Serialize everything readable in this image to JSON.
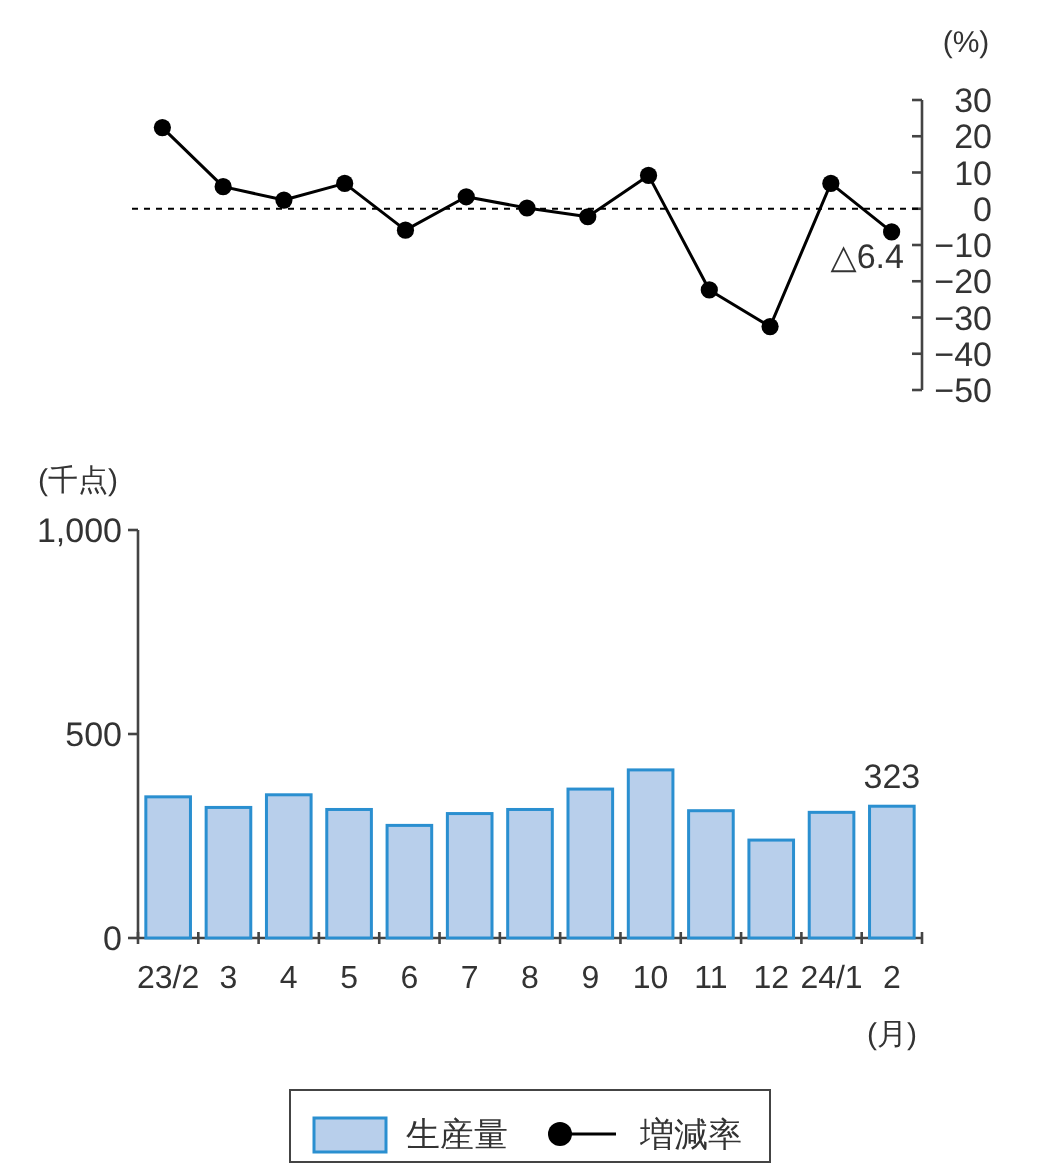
{
  "chart_data": [
    {
      "type": "line",
      "ylabel": "(%)",
      "categories": [
        null,
        null,
        null,
        null,
        null,
        null,
        null,
        null,
        null,
        null,
        null,
        null,
        null
      ],
      "series": [
        {
          "name": "増減率",
          "color": "#000000",
          "values": [
            22.4,
            6.1,
            2.4,
            7.0,
            -5.9,
            3.3,
            0.2,
            -2.2,
            9.2,
            -22.4,
            -32.5,
            7.0,
            -6.4
          ]
        }
      ],
      "annotations": [
        "△6.4"
      ],
      "marker": "circle",
      "line_style": "solid",
      "ylim": [
        -50,
        30
      ],
      "yticks": [
        30,
        20,
        10,
        0,
        {
          "value": -10,
          "label": "−10"
        },
        {
          "value": -20,
          "label": "−20"
        },
        {
          "value": -30,
          "label": "−30"
        },
        {
          "value": -40,
          "label": "−40"
        },
        {
          "value": -50,
          "label": "−50"
        }
      ],
      "ref_lines": [
        {
          "axis": "y",
          "value": 0,
          "color": "#000000",
          "line_style": "dashed"
        }
      ],
      "tick_labels": "y",
      "legend": "bottom"
    },
    {
      "type": "bar",
      "ylabel": "(千点)",
      "xlabel": "(月)",
      "categories": [
        "23/2",
        "3",
        "4",
        "5",
        "6",
        "7",
        "8",
        "9",
        "10",
        "11",
        "12",
        "24/1",
        "2"
      ],
      "series": [
        {
          "name": "生産量",
          "color": "#b8cfeb",
          "values": [
            346,
            320,
            351,
            315,
            276,
            305,
            315,
            365,
            412,
            312,
            240,
            308,
            323
          ],
          "value_labels": [
            null,
            null,
            null,
            null,
            null,
            null,
            null,
            null,
            null,
            null,
            null,
            null,
            "323"
          ]
        }
      ],
      "ylim": [
        0,
        1000
      ],
      "yticks": [
        0,
        500,
        {
          "value": 1000,
          "label": "1,000"
        }
      ],
      "legend": "bottom"
    }
  ]
}
